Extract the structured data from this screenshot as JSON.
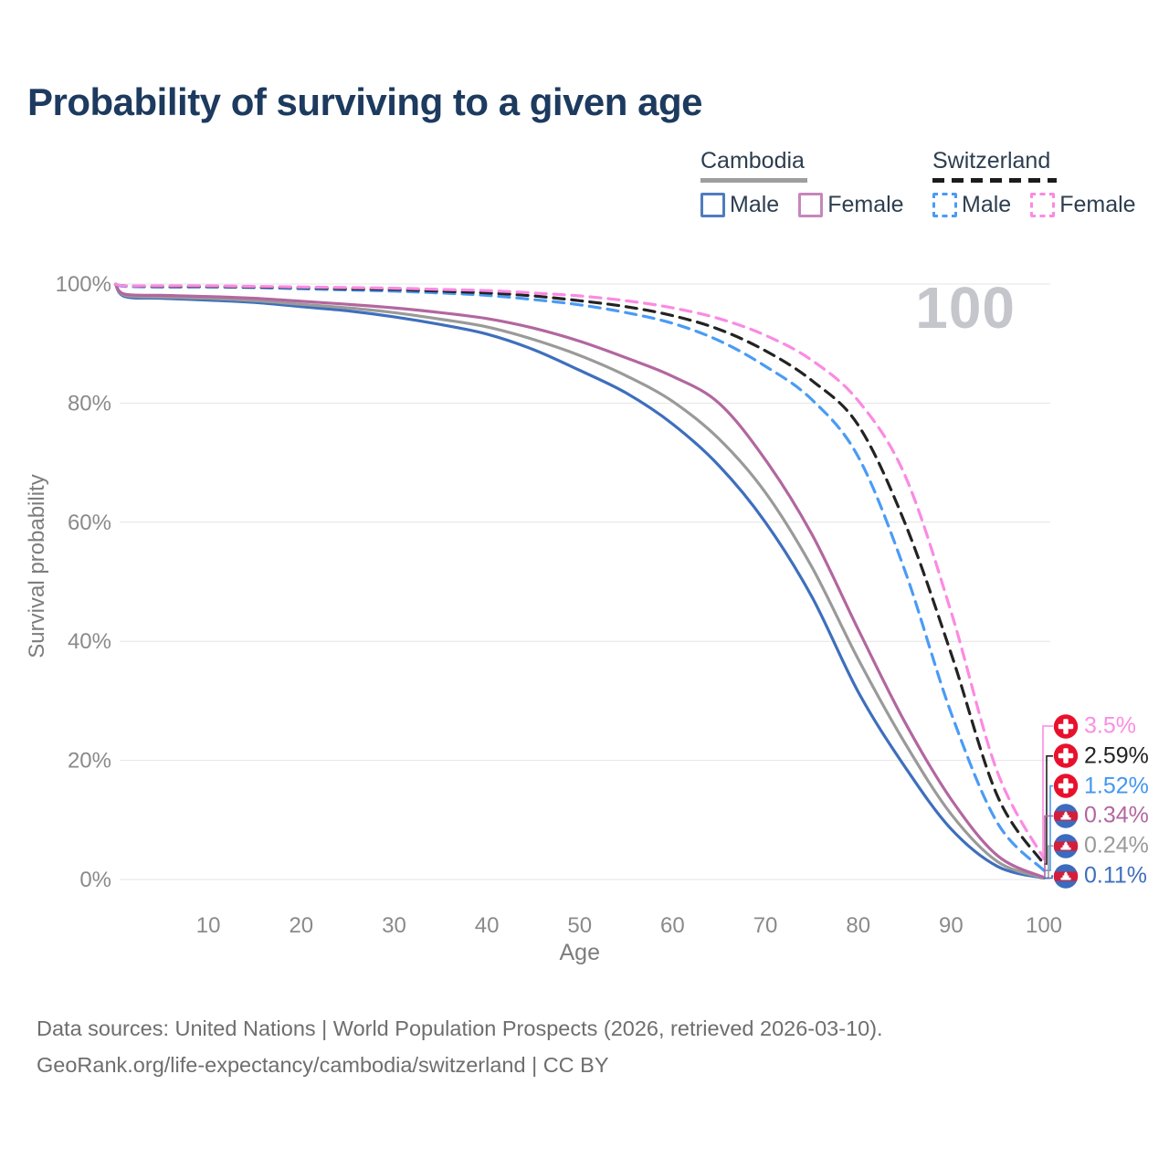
{
  "title": "Probability of surviving to a given age",
  "watermark": "100",
  "legend": {
    "groups": [
      {
        "label": "Cambodia",
        "line_style": "solid",
        "underline_color": "#9e9e9e",
        "items": [
          {
            "label": "Male",
            "color": "#4f7cbe",
            "dashed": false
          },
          {
            "label": "Female",
            "color": "#c687bb",
            "dashed": false
          }
        ]
      },
      {
        "label": "Switzerland",
        "line_style": "dashed",
        "underline_color": "#1c1c1c",
        "items": [
          {
            "label": "Male",
            "color": "#4a9bf5",
            "dashed": true
          },
          {
            "label": "Female",
            "color": "#fb8ae3",
            "dashed": true
          }
        ]
      }
    ]
  },
  "chart_data": {
    "type": "line",
    "title": "Probability of surviving to a given age",
    "xlabel": "Age",
    "ylabel": "Survival probability",
    "xlim": [
      0,
      100
    ],
    "ylim": [
      0,
      100
    ],
    "grid": true,
    "x_ticks": [
      10,
      20,
      30,
      40,
      50,
      60,
      70,
      80,
      90,
      100
    ],
    "y_ticks": [
      {
        "value": 0,
        "label": "0%"
      },
      {
        "value": 20,
        "label": "20%"
      },
      {
        "value": 40,
        "label": "40%"
      },
      {
        "value": 60,
        "label": "60%"
      },
      {
        "value": 80,
        "label": "80%"
      },
      {
        "value": 100,
        "label": "100%"
      }
    ],
    "x": [
      0,
      1,
      5,
      10,
      15,
      20,
      25,
      30,
      35,
      40,
      45,
      50,
      55,
      60,
      65,
      70,
      75,
      80,
      85,
      90,
      95,
      100
    ],
    "series": [
      {
        "name": "Cambodia Male",
        "color": "#3e6fbd",
        "dashed": false,
        "values": [
          100,
          97.9,
          97.6,
          97.3,
          96.9,
          96.2,
          95.5,
          94.5,
          93.2,
          91.6,
          89.0,
          85.5,
          81.7,
          76.5,
          69.5,
          60.0,
          47.5,
          31.5,
          19.0,
          8.5,
          2.2,
          0.11
        ]
      },
      {
        "name": "Cambodia",
        "color": "#9a9a9a",
        "dashed": false,
        "values": [
          100,
          98.1,
          97.8,
          97.6,
          97.2,
          96.6,
          96.0,
          95.2,
          94.1,
          92.8,
          90.7,
          88.0,
          84.6,
          80.3,
          74.0,
          65.0,
          52.5,
          37.0,
          23.0,
          11.0,
          3.0,
          0.24
        ]
      },
      {
        "name": "Cambodia Female",
        "color": "#b2679f",
        "dashed": false,
        "values": [
          100,
          98.3,
          98.1,
          97.9,
          97.6,
          97.1,
          96.6,
          96.0,
          95.2,
          94.2,
          92.6,
          90.4,
          87.6,
          84.5,
          80.0,
          70.5,
          58.0,
          42.0,
          26.5,
          13.5,
          4.0,
          0.34
        ]
      },
      {
        "name": "Switzerland Male",
        "color": "#4a9bf5",
        "dashed": true,
        "values": [
          100,
          99.6,
          99.5,
          99.5,
          99.4,
          99.2,
          99.0,
          98.8,
          98.5,
          98.1,
          97.4,
          96.5,
          95.2,
          93.4,
          90.5,
          86.2,
          80.6,
          71.0,
          52.0,
          28.0,
          9.5,
          1.52
        ]
      },
      {
        "name": "Switzerland",
        "color": "#232323",
        "dashed": true,
        "values": [
          100,
          99.7,
          99.6,
          99.6,
          99.5,
          99.4,
          99.2,
          99.1,
          98.8,
          98.5,
          98.0,
          97.2,
          96.2,
          94.7,
          92.4,
          88.8,
          83.8,
          76.3,
          60.0,
          38.0,
          14.0,
          2.59
        ]
      },
      {
        "name": "Switzerland Female",
        "color": "#fb8ae3",
        "dashed": true,
        "values": [
          100,
          99.7,
          99.7,
          99.7,
          99.6,
          99.5,
          99.4,
          99.3,
          99.1,
          98.9,
          98.5,
          98.0,
          97.2,
          96.0,
          94.2,
          91.4,
          87.2,
          80.4,
          68.0,
          45.0,
          18.0,
          3.5
        ]
      }
    ],
    "end_labels": [
      {
        "series": "Switzerland Female",
        "text": "3.5%",
        "color": "#f98fe3",
        "flag": "switzerland"
      },
      {
        "series": "Switzerland",
        "text": "2.59%",
        "color": "#232323",
        "flag": "switzerland"
      },
      {
        "series": "Switzerland Male",
        "text": "1.52%",
        "color": "#4496f0",
        "flag": "switzerland"
      },
      {
        "series": "Cambodia Female",
        "text": "0.34%",
        "color": "#b2679f",
        "flag": "cambodia"
      },
      {
        "series": "Cambodia",
        "text": "0.24%",
        "color": "#9a9a9a",
        "flag": "cambodia"
      },
      {
        "series": "Cambodia Male",
        "text": "0.11%",
        "color": "#3e6fbd",
        "flag": "cambodia"
      }
    ],
    "annotations": {
      "watermark": "100"
    }
  },
  "footer": {
    "line1": "Data sources: United Nations | World Population Prospects (2026, retrieved 2026-03-10).",
    "line2": "GeoRank.org/life-expectancy/cambodia/switzerland | CC BY"
  }
}
